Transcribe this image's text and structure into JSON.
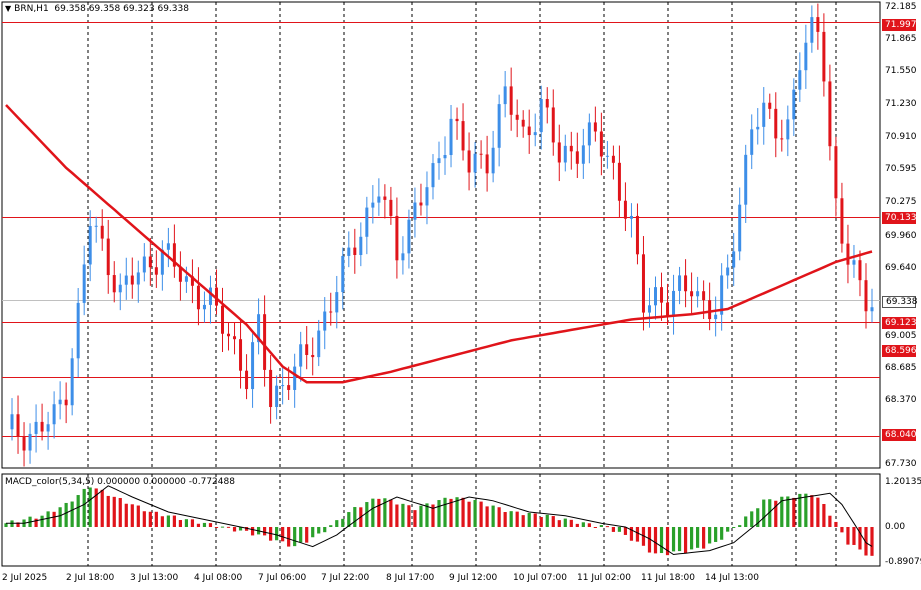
{
  "chart_header": {
    "symbol_label": "BRN,H1",
    "ohlc_text": "69.358 69.358 69.323 69.338"
  },
  "macd_header": {
    "label": "MACD_color(5,34,5) 0.000000 0.000000 -0.772488"
  },
  "price_axis": [
    "72.185",
    "71.865",
    "71.550",
    "71.230",
    "70.910",
    "70.595",
    "70.275",
    "69.960",
    "69.640",
    "69.005",
    "68.685",
    "68.370",
    "67.730"
  ],
  "price_badges": {
    "level_1": "71.997",
    "level_2": "70.133",
    "current": "69.338",
    "level_3": "69.123",
    "level_4": "68.596",
    "level_5": "68.040"
  },
  "macd_axis": [
    "1.201351",
    "0.00",
    "-0.89079"
  ],
  "time_axis": [
    "2 Jul 2025",
    "2 Jul 18:00",
    "3 Jul 13:00",
    "4 Jul 08:00",
    "7 Jul 06:00",
    "7 Jul 22:00",
    "8 Jul 17:00",
    "9 Jul 12:00",
    "10 Jul 07:00",
    "11 Jul 02:00",
    "11 Jul 18:00",
    "14 Jul 13:00"
  ],
  "colors": {
    "bull": "#3d8ee8",
    "bear": "#e0141a",
    "ma_line": "#e0141a",
    "hline": "#e0141a",
    "macd_up": "#2aa02a",
    "macd_down": "#e0141a",
    "signal": "#000000",
    "grid": "#000000"
  },
  "chart_data": {
    "type": "candlestick",
    "symbol": "BRN",
    "timeframe": "H1",
    "ylim": [
      67.73,
      72.185
    ],
    "horizontal_levels": [
      71.997,
      70.133,
      69.123,
      68.596,
      68.04
    ],
    "current_price": 69.338,
    "close_path": [
      [
        0,
        68.1
      ],
      [
        4,
        68.05
      ],
      [
        8,
        68.2
      ],
      [
        10,
        68.5
      ],
      [
        12,
        69.2
      ],
      [
        14,
        70.1
      ],
      [
        17,
        69.7
      ],
      [
        19,
        69.4
      ],
      [
        22,
        69.6
      ],
      [
        26,
        69.8
      ],
      [
        30,
        69.5
      ],
      [
        34,
        69.3
      ],
      [
        38,
        68.9
      ],
      [
        40,
        68.6
      ],
      [
        42,
        69.05
      ],
      [
        44,
        68.4
      ],
      [
        47,
        68.6
      ],
      [
        50,
        68.8
      ],
      [
        54,
        69.3
      ],
      [
        58,
        69.9
      ],
      [
        62,
        70.4
      ],
      [
        65,
        69.8
      ],
      [
        68,
        70.2
      ],
      [
        71,
        70.5
      ],
      [
        74,
        71.1
      ],
      [
        77,
        70.6
      ],
      [
        80,
        70.7
      ],
      [
        83,
        71.3
      ],
      [
        86,
        70.9
      ],
      [
        89,
        71.2
      ],
      [
        92,
        70.7
      ],
      [
        95,
        70.8
      ],
      [
        98,
        70.9
      ],
      [
        101,
        70.6
      ],
      [
        104,
        70.0
      ],
      [
        106,
        69.3
      ],
      [
        108,
        69.4
      ],
      [
        110,
        69.3
      ],
      [
        112,
        69.4
      ],
      [
        114,
        69.5
      ],
      [
        116,
        69.3
      ],
      [
        118,
        69.2
      ],
      [
        120,
        69.6
      ],
      [
        122,
        70.3
      ],
      [
        124,
        71.0
      ],
      [
        126,
        71.1
      ],
      [
        128,
        71.0
      ],
      [
        130,
        71.0
      ],
      [
        132,
        71.6
      ],
      [
        134,
        71.9
      ],
      [
        135,
        71.95
      ],
      [
        136,
        71.6
      ],
      [
        137,
        70.8
      ],
      [
        138,
        70.2
      ],
      [
        139,
        69.9
      ],
      [
        140,
        69.7
      ],
      [
        141,
        69.6
      ],
      [
        142,
        69.5
      ],
      [
        143,
        69.4
      ],
      [
        144,
        69.338
      ]
    ],
    "moving_average_path": [
      [
        0,
        71.2
      ],
      [
        10,
        70.6
      ],
      [
        20,
        70.1
      ],
      [
        30,
        69.6
      ],
      [
        40,
        69.1
      ],
      [
        46,
        68.7
      ],
      [
        50,
        68.55
      ],
      [
        56,
        68.55
      ],
      [
        64,
        68.65
      ],
      [
        74,
        68.8
      ],
      [
        84,
        68.95
      ],
      [
        94,
        69.05
      ],
      [
        104,
        69.15
      ],
      [
        114,
        69.2
      ],
      [
        120,
        69.25
      ],
      [
        126,
        69.4
      ],
      [
        132,
        69.55
      ],
      [
        138,
        69.7
      ],
      [
        144,
        69.8
      ]
    ],
    "macd_ylim": [
      -0.89079,
      1.201351
    ],
    "macd_path": [
      [
        0,
        0.1
      ],
      [
        6,
        0.3
      ],
      [
        10,
        0.6
      ],
      [
        14,
        1.1
      ],
      [
        18,
        0.8
      ],
      [
        24,
        0.4
      ],
      [
        30,
        0.2
      ],
      [
        36,
        0.0
      ],
      [
        42,
        -0.2
      ],
      [
        48,
        -0.5
      ],
      [
        52,
        -0.2
      ],
      [
        58,
        0.5
      ],
      [
        62,
        0.8
      ],
      [
        68,
        0.5
      ],
      [
        74,
        0.8
      ],
      [
        78,
        0.7
      ],
      [
        84,
        0.4
      ],
      [
        90,
        0.3
      ],
      [
        96,
        0.1
      ],
      [
        100,
        0.0
      ],
      [
        104,
        -0.3
      ],
      [
        108,
        -0.7
      ],
      [
        114,
        -0.6
      ],
      [
        118,
        -0.4
      ],
      [
        122,
        0.1
      ],
      [
        126,
        0.7
      ],
      [
        130,
        0.8
      ],
      [
        134,
        0.9
      ],
      [
        136,
        0.6
      ],
      [
        140,
        -0.4
      ],
      [
        144,
        -0.77
      ]
    ]
  }
}
